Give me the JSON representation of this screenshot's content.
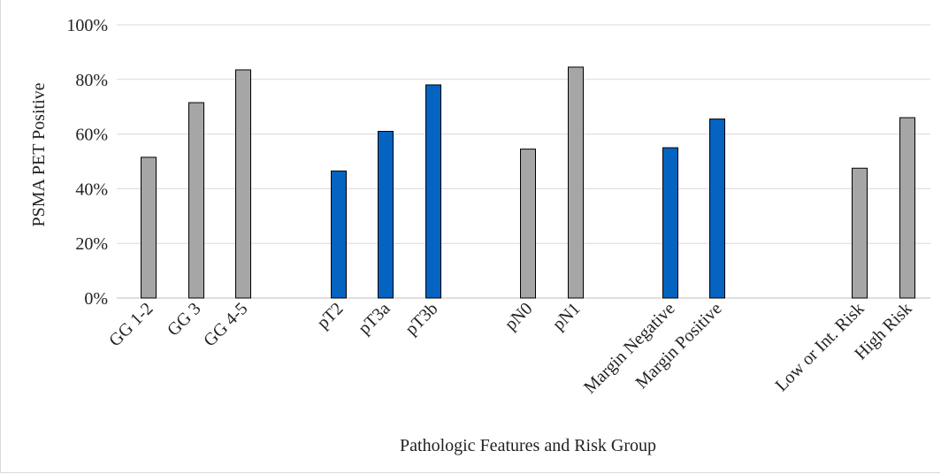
{
  "chart_data": {
    "type": "bar",
    "xlabel": "Pathologic Features and Risk Group",
    "ylabel": "PSMA PET Positive",
    "ylim": [
      0,
      100
    ],
    "yticks": [
      "0%",
      "20%",
      "40%",
      "60%",
      "80%",
      "100%"
    ],
    "grid": true,
    "categories": [
      "GG 1-2",
      "GG 3",
      "GG 4-5",
      "pT2",
      "pT3a",
      "pT3b",
      "pN0",
      "pN1",
      "Margin Negative",
      "Margin Positive",
      "Low or Int. Risk",
      "High Risk"
    ],
    "values": [
      51.5,
      71.5,
      83.5,
      46.5,
      61.0,
      78.0,
      54.5,
      84.5,
      55.0,
      65.5,
      47.5,
      66.0
    ],
    "groups": [
      {
        "categories": [
          "GG 1-2",
          "GG 3",
          "GG 4-5"
        ],
        "color": "#a6a6a6"
      },
      {
        "categories": [
          "pT2",
          "pT3a",
          "pT3b"
        ],
        "color": "#0563c1"
      },
      {
        "categories": [
          "pN0",
          "pN1"
        ],
        "color": "#a6a6a6"
      },
      {
        "categories": [
          "Margin Negative",
          "Margin Positive"
        ],
        "color": "#0563c1"
      },
      {
        "categories": [
          "Low or Int. Risk",
          "High Risk"
        ],
        "color": "#a6a6a6"
      }
    ]
  }
}
